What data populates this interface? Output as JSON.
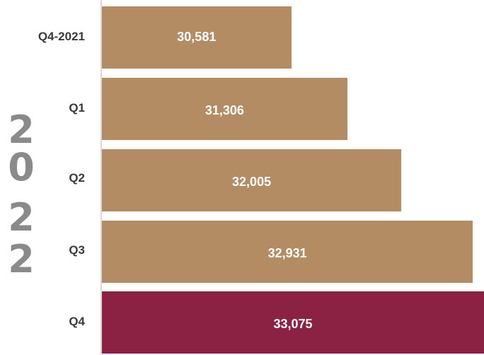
{
  "year_label": [
    "2",
    "0",
    "2",
    "2"
  ],
  "colors": {
    "bar": "#b48c64",
    "highlight": "#8b2244"
  },
  "chart_data": {
    "type": "bar",
    "orientation": "horizontal",
    "categories": [
      "Q4-2021",
      "Q1",
      "Q2",
      "Q3",
      "Q4"
    ],
    "values": [
      30581,
      31306,
      32005,
      32931,
      33075
    ],
    "value_labels": [
      "30,581",
      "31,306",
      "32,005",
      "32,931",
      "33,075"
    ],
    "highlight_index": 4,
    "title": "",
    "xlabel": "",
    "ylabel": ""
  }
}
